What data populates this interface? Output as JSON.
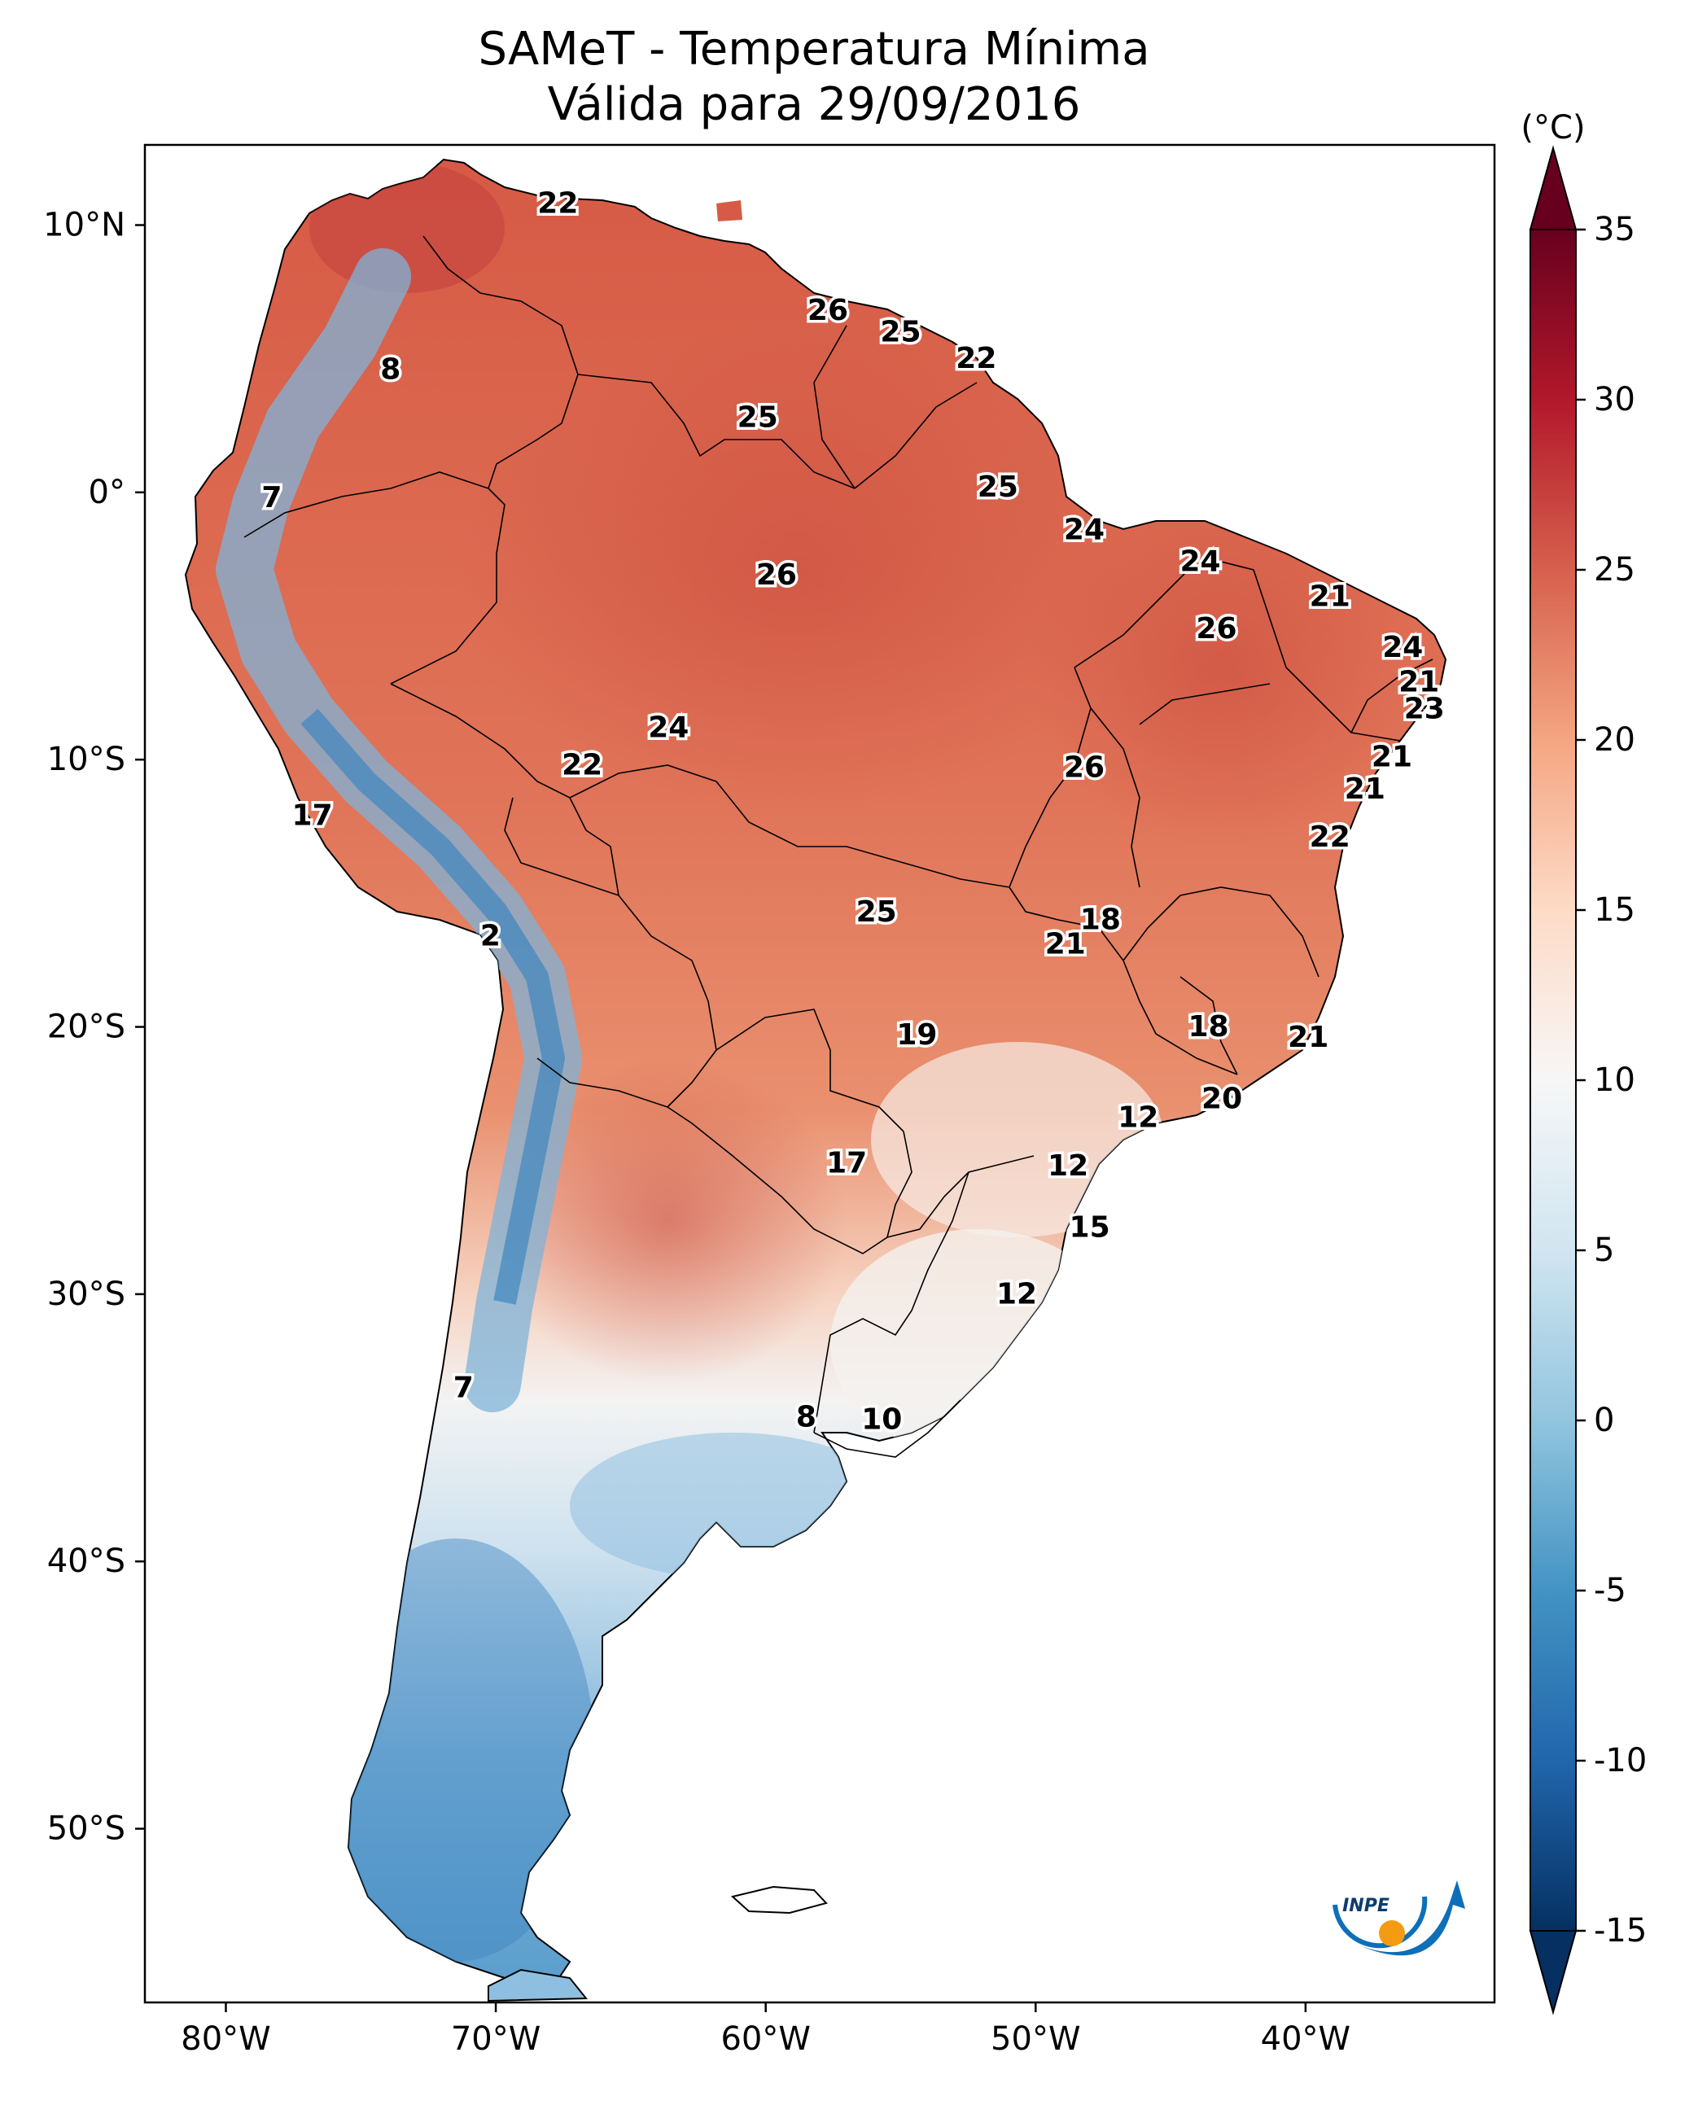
{
  "title": "SAMeT - Temperatura Mínima",
  "subtitle": "Válida para 29/09/2016",
  "colorbar": {
    "unit": "(°C)",
    "ticks": [
      35,
      30,
      25,
      20,
      15,
      10,
      5,
      0,
      -5,
      -10,
      -15
    ],
    "tick_labels": [
      "35",
      "30",
      "25",
      "20",
      "15",
      "10",
      "5",
      "0",
      "-5",
      "-10",
      "-15"
    ],
    "range": [
      -15,
      35
    ],
    "colors": [
      "#053061",
      "#2166ac",
      "#4393c3",
      "#92c5de",
      "#d1e5f0",
      "#f7f7f7",
      "#fddbc7",
      "#f4a582",
      "#d6604d",
      "#b2182b",
      "#67001f"
    ]
  },
  "logo": {
    "text": "INPE",
    "colors": [
      "#0d6fb8",
      "#f39c12"
    ]
  },
  "chart_data": {
    "type": "heatmap",
    "variable": "Temperatura Mínima",
    "xlim": [
      -83,
      -33
    ],
    "ylim": [
      -56.5,
      13
    ],
    "x_ticks": [
      -80,
      -70,
      -60,
      -50,
      -40
    ],
    "x_tick_labels": [
      "80°W",
      "70°W",
      "60°W",
      "50°W",
      "40°W"
    ],
    "y_ticks": [
      10,
      0,
      -10,
      -20,
      -30,
      -40,
      -50
    ],
    "y_tick_labels": [
      "10°N",
      "0°",
      "10°S",
      "20°S",
      "30°S",
      "40°S",
      "50°S"
    ],
    "labels": [
      {
        "lon": -67.7,
        "lat": 10.8,
        "value": 22
      },
      {
        "lon": -57.7,
        "lat": 6.8,
        "value": 26
      },
      {
        "lon": -55.0,
        "lat": 6.0,
        "value": 25
      },
      {
        "lon": -52.2,
        "lat": 5.0,
        "value": 22
      },
      {
        "lon": -73.9,
        "lat": 4.6,
        "value": 8
      },
      {
        "lon": -60.3,
        "lat": 2.8,
        "value": 25
      },
      {
        "lon": -51.4,
        "lat": 0.2,
        "value": 25
      },
      {
        "lon": -78.3,
        "lat": -0.2,
        "value": 7
      },
      {
        "lon": -48.2,
        "lat": -1.4,
        "value": 24
      },
      {
        "lon": -43.9,
        "lat": -2.6,
        "value": 24
      },
      {
        "lon": -39.1,
        "lat": -3.9,
        "value": 21
      },
      {
        "lon": -59.6,
        "lat": -3.1,
        "value": 26
      },
      {
        "lon": -43.3,
        "lat": -5.1,
        "value": 26
      },
      {
        "lon": -36.4,
        "lat": -5.8,
        "value": 24
      },
      {
        "lon": -35.8,
        "lat": -7.1,
        "value": 21
      },
      {
        "lon": -35.6,
        "lat": -8.1,
        "value": 23
      },
      {
        "lon": -63.6,
        "lat": -8.8,
        "value": 24
      },
      {
        "lon": -66.8,
        "lat": -10.2,
        "value": 22
      },
      {
        "lon": -48.2,
        "lat": -10.3,
        "value": 26
      },
      {
        "lon": -36.8,
        "lat": -9.9,
        "value": 21
      },
      {
        "lon": -37.8,
        "lat": -11.1,
        "value": 21
      },
      {
        "lon": -39.1,
        "lat": -12.9,
        "value": 22
      },
      {
        "lon": -76.8,
        "lat": -12.1,
        "value": 17
      },
      {
        "lon": -55.9,
        "lat": -15.7,
        "value": 25
      },
      {
        "lon": -47.6,
        "lat": -16.0,
        "value": 18
      },
      {
        "lon": -48.9,
        "lat": -16.9,
        "value": 21
      },
      {
        "lon": -70.2,
        "lat": -16.6,
        "value": 2
      },
      {
        "lon": -54.4,
        "lat": -20.3,
        "value": 19
      },
      {
        "lon": -43.6,
        "lat": -20.0,
        "value": 18
      },
      {
        "lon": -39.9,
        "lat": -20.4,
        "value": 21
      },
      {
        "lon": -43.1,
        "lat": -22.7,
        "value": 20
      },
      {
        "lon": -46.2,
        "lat": -23.4,
        "value": 12
      },
      {
        "lon": -57.0,
        "lat": -25.1,
        "value": 17
      },
      {
        "lon": -48.8,
        "lat": -25.2,
        "value": 12
      },
      {
        "lon": -48.0,
        "lat": -27.5,
        "value": 15
      },
      {
        "lon": -50.7,
        "lat": -30.0,
        "value": 12
      },
      {
        "lon": -71.2,
        "lat": -33.5,
        "value": 7
      },
      {
        "lon": -58.5,
        "lat": -34.6,
        "value": 8
      },
      {
        "lon": -55.7,
        "lat": -34.7,
        "value": 10
      }
    ]
  }
}
